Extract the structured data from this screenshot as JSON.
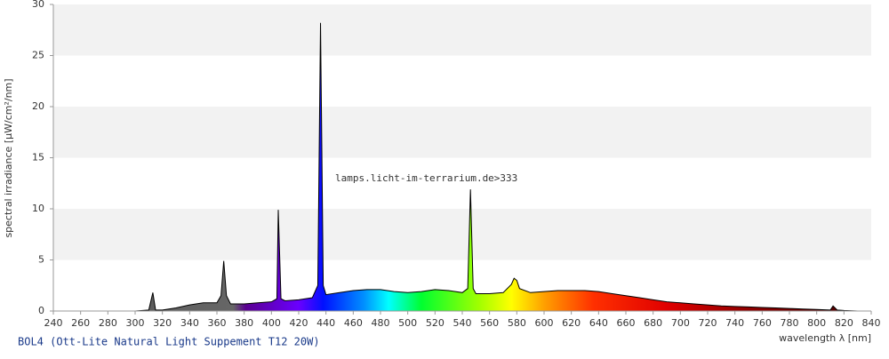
{
  "chart_data": {
    "type": "area",
    "xlabel": "wavelength λ [nm]",
    "ylabel": "spectral irradiance [µW/cm²/nm]",
    "annotation": "lamps.licht-im-terrarium.de>333",
    "caption": "BOL4 (Ott-Lite Natural Light Suppement T12 20W)",
    "x": [
      250,
      300,
      310,
      313,
      315,
      320,
      330,
      340,
      350,
      360,
      363,
      365,
      367,
      370,
      380,
      390,
      400,
      404,
      405,
      407,
      410,
      420,
      430,
      434,
      436,
      438,
      440,
      450,
      460,
      470,
      480,
      490,
      500,
      510,
      520,
      530,
      540,
      544,
      546,
      548,
      550,
      560,
      570,
      576,
      578,
      580,
      582,
      590,
      600,
      610,
      620,
      630,
      640,
      650,
      660,
      670,
      680,
      690,
      700,
      710,
      720,
      730,
      740,
      750,
      760,
      770,
      780,
      790,
      800,
      810,
      812,
      815,
      820,
      830
    ],
    "values": [
      0,
      0,
      0.1,
      1.8,
      0.1,
      0.1,
      0.3,
      0.6,
      0.8,
      0.8,
      1.5,
      4.9,
      1.5,
      0.7,
      0.7,
      0.8,
      0.9,
      1.2,
      9.9,
      1.2,
      1.0,
      1.1,
      1.3,
      2.5,
      28.2,
      2.5,
      1.6,
      1.8,
      2.0,
      2.1,
      2.1,
      1.9,
      1.8,
      1.9,
      2.1,
      2.0,
      1.8,
      2.2,
      11.9,
      2.2,
      1.7,
      1.7,
      1.8,
      2.6,
      3.2,
      3.0,
      2.2,
      1.8,
      1.9,
      2.0,
      2.0,
      2.0,
      1.9,
      1.7,
      1.5,
      1.3,
      1.1,
      0.9,
      0.8,
      0.7,
      0.6,
      0.5,
      0.45,
      0.4,
      0.35,
      0.3,
      0.25,
      0.2,
      0.15,
      0.1,
      0.5,
      0.1,
      0.05,
      0
    ],
    "xlim": [
      240,
      840
    ],
    "xticks": [
      240,
      260,
      280,
      300,
      320,
      340,
      360,
      380,
      400,
      420,
      440,
      460,
      480,
      500,
      520,
      540,
      560,
      580,
      600,
      620,
      640,
      660,
      680,
      700,
      720,
      740,
      760,
      780,
      800,
      820,
      840
    ],
    "ylim": [
      0,
      30
    ],
    "yticks": [
      0,
      5,
      10,
      15,
      20,
      25,
      30
    ],
    "band_color": "#f2f2f2",
    "line_color": "#000000"
  }
}
